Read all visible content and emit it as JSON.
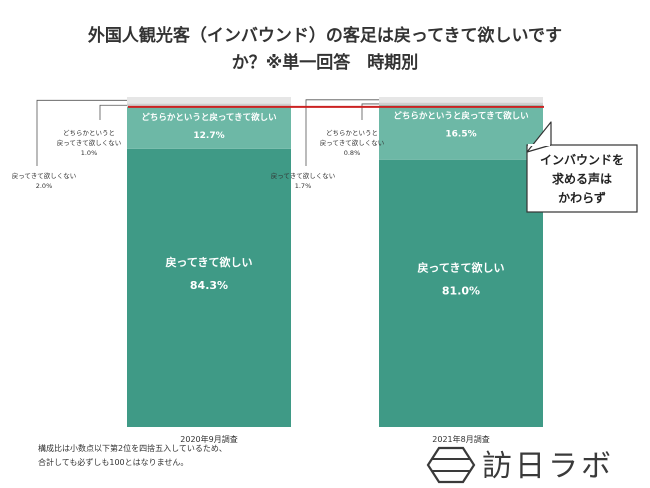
{
  "title_lines": [
    "外国人観光客（インバウンド）の客足は戻ってきて欲しいです",
    "か？※単一回答　時期別"
  ],
  "chart_data": {
    "type": "bar",
    "stacked": true,
    "percent": true,
    "categories": [
      "2020年9月調査",
      "2021年8月調査"
    ],
    "series": [
      {
        "name": "戻ってきて欲しい",
        "values": [
          84.3,
          81.0
        ],
        "color": "#3f9a86"
      },
      {
        "name": "どちらかというと戻ってきて欲しい",
        "values": [
          12.7,
          16.5
        ],
        "color": "#6db8a6"
      },
      {
        "name": "どちらかというと戻ってきて欲しくない",
        "values": [
          1.0,
          0.8
        ],
        "color": "#cfcfcf"
      },
      {
        "name": "戻ってきて欲しくない",
        "values": [
          2.0,
          1.7
        ],
        "color": "#e6e6e6"
      }
    ],
    "ylim": [
      0,
      100
    ],
    "grid": false,
    "reference_line_color": "#cc2222"
  },
  "annotations": [
    {
      "lines": [
        "戻ってきて欲しくない",
        "2.0%"
      ]
    },
    {
      "lines": [
        "どちらかというと",
        "戻ってきて欲しくない",
        "1.0%"
      ]
    },
    {
      "lines": [
        "戻ってきて欲しくない",
        "1.7%"
      ]
    },
    {
      "lines": [
        "どちらかというと",
        "戻ってきて欲しくない",
        "0.8%"
      ]
    }
  ],
  "callout": {
    "lines": [
      "インバウンドを",
      "求める声は",
      "かわらず"
    ]
  },
  "footnote": [
    "構成比は小数点以下第2位を四捨五入しているため、",
    "合計しても必ずしも100とはなりません。"
  ],
  "logo": {
    "text": "訪日ラボ"
  }
}
